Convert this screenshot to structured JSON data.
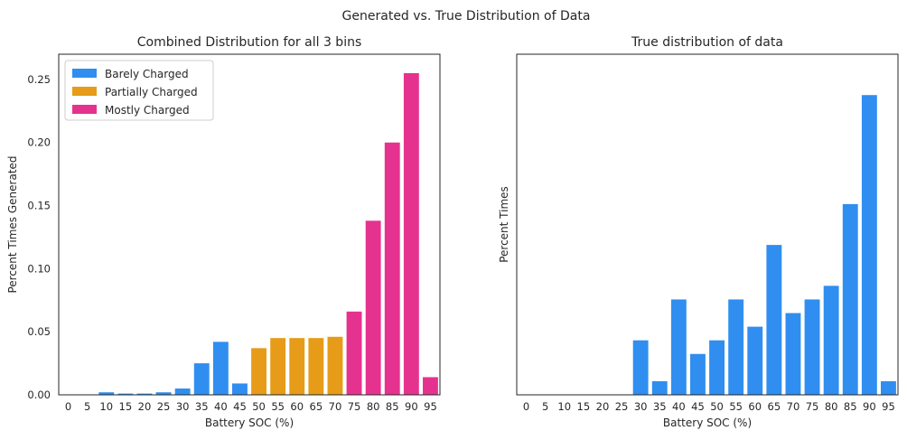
{
  "figure": {
    "suptitle": "Generated vs. True Distribution of Data"
  },
  "chart_data": [
    {
      "type": "bar",
      "title": "Combined Distribution for all 3 bins",
      "xlabel": "Battery SOC (%)",
      "ylabel": "Percent Times Generated",
      "categories": [
        "0",
        "5",
        "10",
        "15",
        "20",
        "25",
        "30",
        "35",
        "40",
        "45",
        "50",
        "55",
        "60",
        "65",
        "70",
        "75",
        "80",
        "85",
        "90",
        "95"
      ],
      "values": [
        0,
        0,
        0.002,
        0.001,
        0.001,
        0.002,
        0.005,
        0.025,
        0.042,
        0.009,
        0.037,
        0.045,
        0.045,
        0.045,
        0.046,
        0.066,
        0.138,
        0.2,
        0.255,
        0.014
      ],
      "bar_series_index": [
        0,
        0,
        0,
        0,
        0,
        0,
        0,
        0,
        0,
        0,
        1,
        1,
        1,
        1,
        1,
        2,
        2,
        2,
        2,
        2
      ],
      "series": [
        {
          "name": "Barely Charged",
          "color": "#2f8ef0"
        },
        {
          "name": "Partially Charged",
          "color": "#e69c18"
        },
        {
          "name": "Mostly Charged",
          "color": "#e6328f"
        }
      ],
      "ylim": [
        0,
        0.27
      ],
      "yticks": [
        0.0,
        0.05,
        0.1,
        0.15,
        0.2,
        0.25
      ],
      "ytick_labels": [
        "0.00",
        "0.05",
        "0.10",
        "0.15",
        "0.20",
        "0.25"
      ],
      "legend_position": "top-left",
      "grid": false
    },
    {
      "type": "bar",
      "title": "True distribution of data",
      "xlabel": "Battery SOC (%)",
      "ylabel": "Percent Times",
      "categories": [
        "0",
        "5",
        "10",
        "15",
        "20",
        "25",
        "30",
        "35",
        "40",
        "45",
        "50",
        "55",
        "60",
        "65",
        "70",
        "75",
        "80",
        "85",
        "90",
        "95"
      ],
      "values": [
        0,
        0,
        0,
        0,
        0,
        0,
        4,
        1,
        7,
        3,
        4,
        7,
        5,
        11,
        6,
        7,
        8,
        14,
        22,
        1
      ],
      "color": "#2f8ef0",
      "ylim": [
        0,
        25
      ],
      "yticks": [],
      "grid": false
    }
  ]
}
